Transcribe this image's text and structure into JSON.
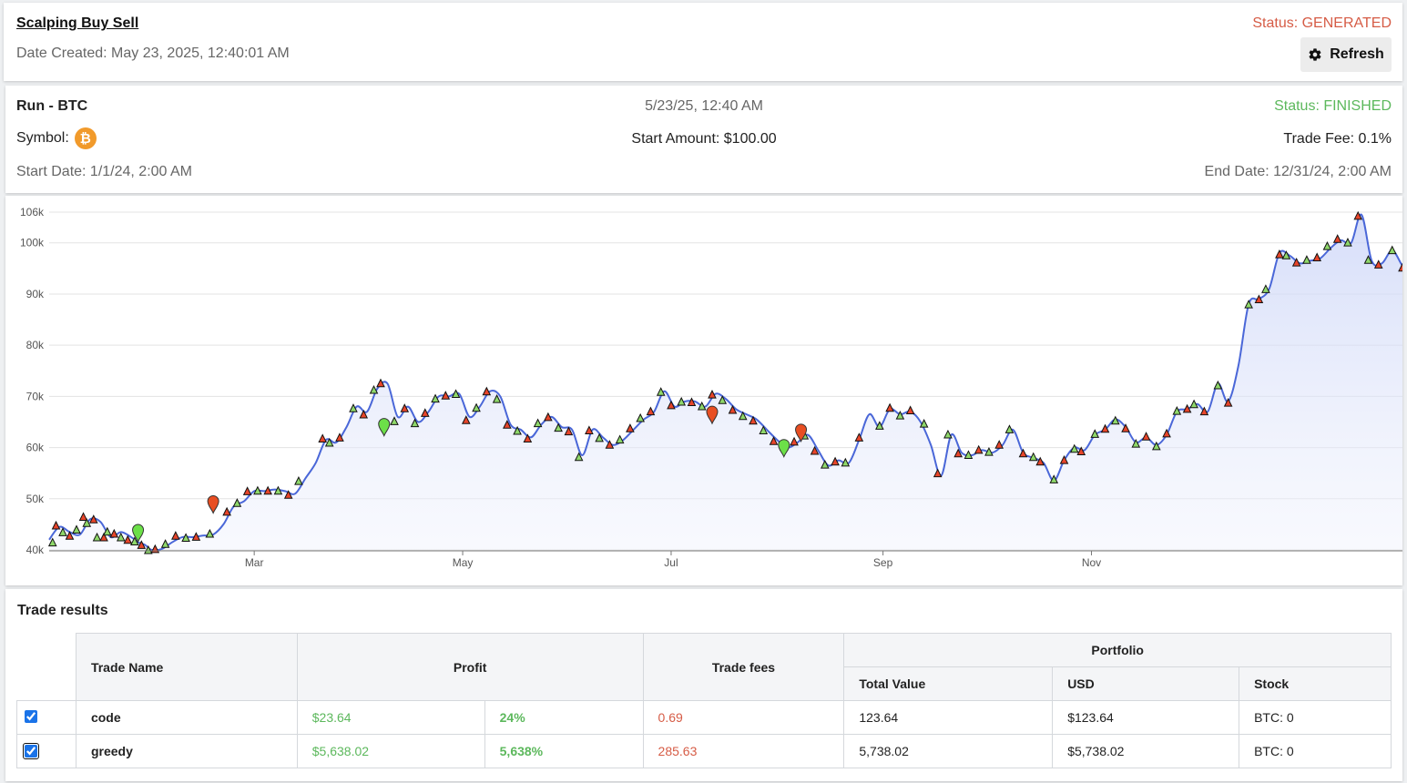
{
  "header": {
    "title": "Scalping Buy Sell",
    "date_created": "Date Created: May 23, 2025, 12:40:01 AM",
    "status": "Status: GENERATED",
    "refresh_label": "Refresh"
  },
  "run": {
    "title": "Run - BTC",
    "created": "5/23/25, 12:40 AM",
    "status": "Status: FINISHED",
    "symbol_label": "Symbol:",
    "symbol_icon": "bitcoin-icon",
    "start_amount": "Start Amount: $100.00",
    "trade_fee": "Trade Fee: 0.1%",
    "start_date": "Start Date: 1/1/24, 2:00 AM",
    "end_date": "End Date: 12/31/24, 2:00 AM"
  },
  "chart_data": {
    "type": "area",
    "title": "",
    "xlabel": "",
    "ylabel": "",
    "ylim": [
      40000,
      106000
    ],
    "x_range_days": [
      0,
      365
    ],
    "y_ticks": [
      {
        "v": 40000,
        "l": "40k"
      },
      {
        "v": 50000,
        "l": "50k"
      },
      {
        "v": 60000,
        "l": "60k"
      },
      {
        "v": 70000,
        "l": "70k"
      },
      {
        "v": 80000,
        "l": "80k"
      },
      {
        "v": 90000,
        "l": "90k"
      },
      {
        "v": 100000,
        "l": "100k"
      },
      {
        "v": 106000,
        "l": "106k"
      }
    ],
    "x_ticks": [
      {
        "d": 60,
        "l": "Mar"
      },
      {
        "d": 121,
        "l": "May"
      },
      {
        "d": 182,
        "l": "Jul"
      },
      {
        "d": 244,
        "l": "Sep"
      },
      {
        "d": 305,
        "l": "Nov"
      }
    ],
    "series": [
      {
        "line_color": "#4a67d8",
        "points": [
          [
            0,
            42000
          ],
          [
            3,
            44500
          ],
          [
            6,
            43500
          ],
          [
            9,
            43000
          ],
          [
            12,
            46000
          ],
          [
            15,
            45500
          ],
          [
            18,
            42500
          ],
          [
            21,
            43500
          ],
          [
            24,
            42500
          ],
          [
            26,
            41500
          ],
          [
            28,
            41000
          ],
          [
            30,
            40000
          ],
          [
            33,
            40200
          ],
          [
            36,
            41500
          ],
          [
            39,
            42500
          ],
          [
            42,
            42500
          ],
          [
            45,
            42800
          ],
          [
            48,
            43000
          ],
          [
            51,
            45000
          ],
          [
            54,
            48500
          ],
          [
            57,
            49500
          ],
          [
            60,
            51500
          ],
          [
            63,
            51500
          ],
          [
            66,
            51800
          ],
          [
            69,
            51500
          ],
          [
            72,
            51000
          ],
          [
            75,
            54000
          ],
          [
            78,
            57000
          ],
          [
            81,
            61500
          ],
          [
            84,
            61000
          ],
          [
            87,
            64000
          ],
          [
            90,
            68000
          ],
          [
            93,
            67000
          ],
          [
            96,
            71500
          ],
          [
            99,
            72500
          ],
          [
            102,
            66000
          ],
          [
            105,
            68000
          ],
          [
            108,
            65000
          ],
          [
            111,
            67000
          ],
          [
            114,
            70000
          ],
          [
            117,
            70000
          ],
          [
            120,
            70500
          ],
          [
            123,
            66000
          ],
          [
            126,
            68000
          ],
          [
            129,
            71000
          ],
          [
            132,
            70000
          ],
          [
            135,
            64500
          ],
          [
            138,
            63500
          ],
          [
            141,
            62000
          ],
          [
            144,
            64500
          ],
          [
            147,
            66000
          ],
          [
            150,
            64000
          ],
          [
            153,
            63500
          ],
          [
            156,
            58500
          ],
          [
            159,
            63500
          ],
          [
            162,
            62000
          ],
          [
            165,
            60500
          ],
          [
            168,
            61500
          ],
          [
            171,
            63500
          ],
          [
            174,
            65500
          ],
          [
            177,
            67000
          ],
          [
            180,
            71000
          ],
          [
            183,
            68000
          ],
          [
            186,
            69000
          ],
          [
            189,
            69000
          ],
          [
            192,
            68000
          ],
          [
            195,
            70500
          ],
          [
            198,
            69500
          ],
          [
            201,
            67500
          ],
          [
            204,
            66500
          ],
          [
            207,
            65500
          ],
          [
            210,
            63500
          ],
          [
            213,
            61500
          ],
          [
            216,
            60000
          ],
          [
            219,
            61000
          ],
          [
            222,
            62500
          ],
          [
            225,
            59500
          ],
          [
            228,
            56500
          ],
          [
            231,
            57500
          ],
          [
            234,
            57000
          ],
          [
            237,
            61500
          ],
          [
            240,
            66500
          ],
          [
            243,
            64000
          ],
          [
            246,
            67500
          ],
          [
            249,
            66500
          ],
          [
            252,
            67000
          ],
          [
            255,
            65000
          ],
          [
            258,
            60500
          ],
          [
            261,
            54500
          ],
          [
            264,
            62500
          ],
          [
            267,
            59000
          ],
          [
            270,
            58500
          ],
          [
            273,
            59500
          ],
          [
            276,
            59000
          ],
          [
            279,
            60500
          ],
          [
            282,
            63500
          ],
          [
            285,
            59000
          ],
          [
            288,
            58000
          ],
          [
            291,
            57000
          ],
          [
            294,
            53500
          ],
          [
            297,
            57500
          ],
          [
            300,
            60000
          ],
          [
            303,
            59500
          ],
          [
            306,
            62500
          ],
          [
            309,
            63500
          ],
          [
            312,
            65500
          ],
          [
            315,
            64000
          ],
          [
            318,
            61000
          ],
          [
            321,
            62000
          ],
          [
            324,
            60500
          ],
          [
            327,
            62500
          ],
          [
            330,
            67000
          ],
          [
            333,
            67500
          ],
          [
            336,
            68500
          ],
          [
            339,
            67000
          ],
          [
            342,
            72500
          ],
          [
            345,
            69000
          ],
          [
            348,
            76000
          ],
          [
            351,
            88000
          ],
          [
            354,
            89000
          ],
          [
            357,
            91000
          ],
          [
            360,
            98000
          ],
          [
            363,
            97500
          ],
          [
            366,
            96000
          ],
          [
            369,
            96500
          ],
          [
            372,
            97000
          ],
          [
            375,
            99000
          ],
          [
            378,
            100500
          ],
          [
            381,
            100000
          ],
          [
            384,
            105500
          ],
          [
            387,
            96500
          ],
          [
            390,
            96000
          ],
          [
            393,
            98500
          ],
          [
            396,
            95500
          ],
          [
            399,
            93000
          ]
        ]
      }
    ],
    "markers": [
      [
        1,
        41500
      ],
      [
        2,
        44800
      ],
      [
        4,
        43500
      ],
      [
        6,
        42800
      ],
      [
        8,
        44000
      ],
      [
        10,
        46500
      ],
      [
        11,
        45300
      ],
      [
        13,
        46000
      ],
      [
        14,
        42500
      ],
      [
        16,
        42500
      ],
      [
        17,
        43600
      ],
      [
        19,
        43200
      ],
      [
        21,
        42500
      ],
      [
        23,
        42000
      ],
      [
        25,
        41700
      ],
      [
        27,
        41000
      ],
      [
        29,
        40000
      ],
      [
        31,
        40200
      ],
      [
        34,
        41200
      ],
      [
        37,
        42800
      ],
      [
        40,
        42400
      ],
      [
        43,
        42600
      ],
      [
        47,
        43200
      ],
      [
        52,
        47500
      ],
      [
        55,
        49200
      ],
      [
        58,
        51500
      ],
      [
        61,
        51600
      ],
      [
        64,
        51600
      ],
      [
        67,
        51600
      ],
      [
        70,
        50800
      ],
      [
        73,
        53500
      ],
      [
        80,
        61800
      ],
      [
        82,
        61000
      ],
      [
        85,
        62000
      ],
      [
        89,
        67700
      ],
      [
        92,
        66500
      ],
      [
        95,
        71300
      ],
      [
        97,
        72600
      ],
      [
        101,
        65200
      ],
      [
        104,
        67700
      ],
      [
        107,
        64800
      ],
      [
        110,
        66800
      ],
      [
        113,
        69600
      ],
      [
        116,
        70200
      ],
      [
        119,
        70500
      ],
      [
        122,
        65400
      ],
      [
        125,
        67800
      ],
      [
        128,
        71000
      ],
      [
        131,
        69500
      ],
      [
        134,
        64500
      ],
      [
        137,
        63300
      ],
      [
        140,
        61800
      ],
      [
        143,
        64800
      ],
      [
        146,
        66000
      ],
      [
        149,
        63900
      ],
      [
        152,
        63200
      ],
      [
        155,
        58200
      ],
      [
        158,
        63400
      ],
      [
        161,
        61900
      ],
      [
        164,
        60600
      ],
      [
        167,
        61600
      ],
      [
        170,
        63800
      ],
      [
        173,
        65800
      ],
      [
        176,
        67100
      ],
      [
        179,
        70900
      ],
      [
        182,
        68300
      ],
      [
        185,
        69000
      ],
      [
        188,
        68900
      ],
      [
        191,
        68100
      ],
      [
        194,
        70400
      ],
      [
        197,
        69300
      ],
      [
        200,
        67400
      ],
      [
        203,
        66200
      ],
      [
        206,
        65300
      ],
      [
        209,
        63400
      ],
      [
        212,
        61300
      ],
      [
        215,
        60200
      ],
      [
        218,
        61200
      ],
      [
        221,
        62400
      ],
      [
        224,
        59400
      ],
      [
        227,
        56700
      ],
      [
        230,
        57300
      ],
      [
        233,
        57100
      ],
      [
        237,
        62000
      ],
      [
        243,
        64300
      ],
      [
        246,
        67800
      ],
      [
        249,
        66300
      ],
      [
        252,
        67300
      ],
      [
        256,
        64700
      ],
      [
        260,
        55000
      ],
      [
        263,
        62600
      ],
      [
        266,
        58900
      ],
      [
        269,
        58600
      ],
      [
        272,
        59600
      ],
      [
        275,
        59200
      ],
      [
        278,
        60600
      ],
      [
        281,
        63600
      ],
      [
        285,
        58900
      ],
      [
        288,
        58200
      ],
      [
        290,
        57300
      ],
      [
        294,
        53800
      ],
      [
        297,
        57600
      ],
      [
        300,
        59800
      ],
      [
        302,
        59300
      ],
      [
        306,
        62700
      ],
      [
        309,
        63700
      ],
      [
        312,
        65300
      ],
      [
        315,
        63800
      ],
      [
        318,
        60800
      ],
      [
        321,
        62200
      ],
      [
        324,
        60300
      ],
      [
        327,
        62800
      ],
      [
        330,
        67200
      ],
      [
        333,
        67600
      ],
      [
        335,
        68500
      ],
      [
        338,
        67100
      ],
      [
        342,
        72200
      ],
      [
        345,
        68800
      ],
      [
        351,
        88000
      ],
      [
        354,
        89000
      ],
      [
        356,
        91000
      ],
      [
        360,
        97800
      ],
      [
        362,
        97600
      ],
      [
        365,
        96200
      ],
      [
        368,
        96700
      ],
      [
        371,
        97200
      ],
      [
        374,
        99400
      ],
      [
        377,
        100800
      ],
      [
        380,
        100100
      ],
      [
        383,
        105300
      ],
      [
        386,
        96700
      ],
      [
        389,
        95800
      ],
      [
        393,
        98600
      ],
      [
        396,
        95200
      ]
    ],
    "pins": [
      {
        "d": 26,
        "v": 43200,
        "c": "#6ce048"
      },
      {
        "d": 48,
        "v": 48800,
        "c": "#e84e22"
      },
      {
        "d": 98,
        "v": 63900,
        "c": "#6ce048"
      },
      {
        "d": 194,
        "v": 66300,
        "c": "#e84e22"
      },
      {
        "d": 215,
        "v": 59800,
        "c": "#6ce048"
      },
      {
        "d": 220,
        "v": 62800,
        "c": "#e84e22"
      }
    ]
  },
  "trades": {
    "title": "Trade results",
    "headers": {
      "name": "Trade Name",
      "profit": "Profit",
      "fees": "Trade fees",
      "portfolio": "Portfolio",
      "total": "Total Value",
      "usd": "USD",
      "stock": "Stock"
    },
    "rows": [
      {
        "name": "code",
        "profit": "$23.64",
        "profit_pct": "24%",
        "fees": "0.69",
        "total": "123.64",
        "usd": "$123.64",
        "stock": "BTC: 0",
        "checked": true
      },
      {
        "name": "greedy",
        "profit": "$5,638.02",
        "profit_pct": "5,638%",
        "fees": "285.63",
        "total": "5,738.02",
        "usd": "$5,738.02",
        "stock": "BTC: 0",
        "checked": true
      }
    ]
  }
}
